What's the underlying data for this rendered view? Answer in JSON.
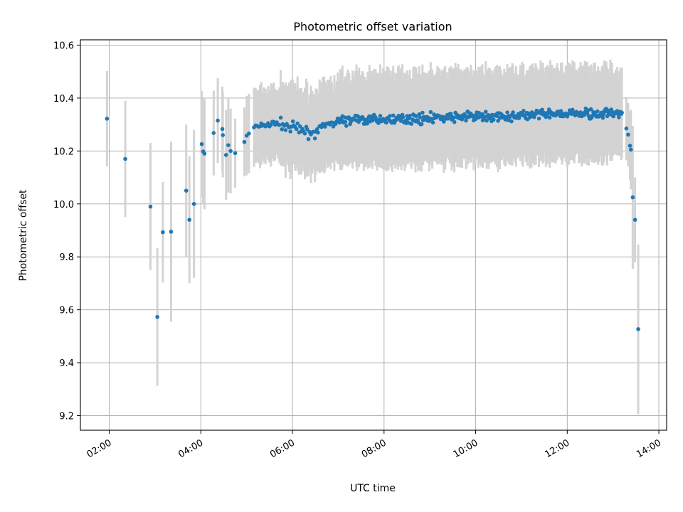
{
  "chart_data": {
    "type": "scatter",
    "title": "Photometric offset variation",
    "xlabel": "UTC time",
    "ylabel": "Photometric offset",
    "x_unit": "hours",
    "xlim": [
      1.37,
      14.17
    ],
    "ylim": [
      9.145,
      10.62
    ],
    "x_ticks": [
      {
        "value": 2,
        "label": "02:00"
      },
      {
        "value": 4,
        "label": "04:00"
      },
      {
        "value": 6,
        "label": "06:00"
      },
      {
        "value": 8,
        "label": "08:00"
      },
      {
        "value": 10,
        "label": "10:00"
      },
      {
        "value": 12,
        "label": "12:00"
      },
      {
        "value": 14,
        "label": "14:00"
      }
    ],
    "y_ticks": [
      {
        "value": 9.2,
        "label": "9.2"
      },
      {
        "value": 9.4,
        "label": "9.4"
      },
      {
        "value": 9.6,
        "label": "9.6"
      },
      {
        "value": 9.8,
        "label": "9.8"
      },
      {
        "value": 10.0,
        "label": "10.0"
      },
      {
        "value": 10.2,
        "label": "10.2"
      },
      {
        "value": 10.4,
        "label": "10.4"
      },
      {
        "value": 10.6,
        "label": "10.6"
      }
    ],
    "grid": true,
    "colors": {
      "point": "#1f77b4",
      "errorbar": "#d3d3d3",
      "grid": "#b0b0b0"
    },
    "sparse_points": [
      {
        "x": 1.95,
        "y": 10.322,
        "err": 0.18
      },
      {
        "x": 2.35,
        "y": 10.17,
        "err": 0.22
      },
      {
        "x": 2.9,
        "y": 9.99,
        "err": 0.24
      },
      {
        "x": 3.05,
        "y": 9.573,
        "err": 0.26
      },
      {
        "x": 3.17,
        "y": 9.893,
        "err": 0.19
      },
      {
        "x": 3.35,
        "y": 9.895,
        "err": 0.34
      },
      {
        "x": 3.68,
        "y": 10.05,
        "err": 0.25
      },
      {
        "x": 3.75,
        "y": 9.94,
        "err": 0.24
      },
      {
        "x": 3.85,
        "y": 10.0,
        "err": 0.28
      },
      {
        "x": 4.02,
        "y": 10.226,
        "err": 0.2
      },
      {
        "x": 4.05,
        "y": 10.198,
        "err": 0.2
      },
      {
        "x": 4.08,
        "y": 10.19,
        "err": 0.21
      },
      {
        "x": 4.28,
        "y": 10.268,
        "err": 0.16
      },
      {
        "x": 4.37,
        "y": 10.315,
        "err": 0.16
      },
      {
        "x": 4.47,
        "y": 10.283,
        "err": 0.16
      },
      {
        "x": 4.48,
        "y": 10.26,
        "err": 0.16
      },
      {
        "x": 4.55,
        "y": 10.185,
        "err": 0.17
      },
      {
        "x": 4.6,
        "y": 10.222,
        "err": 0.18
      },
      {
        "x": 4.65,
        "y": 10.2,
        "err": 0.16
      },
      {
        "x": 4.75,
        "y": 10.192,
        "err": 0.13
      },
      {
        "x": 4.95,
        "y": 10.234,
        "err": 0.13
      },
      {
        "x": 5.0,
        "y": 10.258,
        "err": 0.15
      },
      {
        "x": 5.05,
        "y": 10.266,
        "err": 0.15
      },
      {
        "x": 13.29,
        "y": 10.285,
        "err": 0.12
      },
      {
        "x": 13.33,
        "y": 10.262,
        "err": 0.12
      },
      {
        "x": 13.37,
        "y": 10.22,
        "err": 0.13
      },
      {
        "x": 13.39,
        "y": 10.205,
        "err": 0.15
      },
      {
        "x": 13.43,
        "y": 10.025,
        "err": 0.27
      },
      {
        "x": 13.48,
        "y": 9.94,
        "err": 0.16
      },
      {
        "x": 13.55,
        "y": 9.527,
        "err": 0.32
      }
    ],
    "dense_segments": [
      {
        "x_start": 5.15,
        "x_end": 5.7,
        "y_start": 10.29,
        "y_end": 10.305,
        "scatter": 0.015,
        "err": 0.14,
        "count": 18
      },
      {
        "x_start": 5.7,
        "x_end": 6.5,
        "y_start": 10.305,
        "y_end": 10.26,
        "scatter": 0.02,
        "err": 0.16,
        "count": 30
      },
      {
        "x_start": 6.5,
        "x_end": 7.0,
        "y_start": 10.28,
        "y_end": 10.315,
        "scatter": 0.015,
        "err": 0.16,
        "count": 20
      },
      {
        "x_start": 7.0,
        "x_end": 13.2,
        "y_start": 10.315,
        "y_end": 10.345,
        "scatter": 0.018,
        "err": 0.17,
        "count": 370
      }
    ]
  }
}
